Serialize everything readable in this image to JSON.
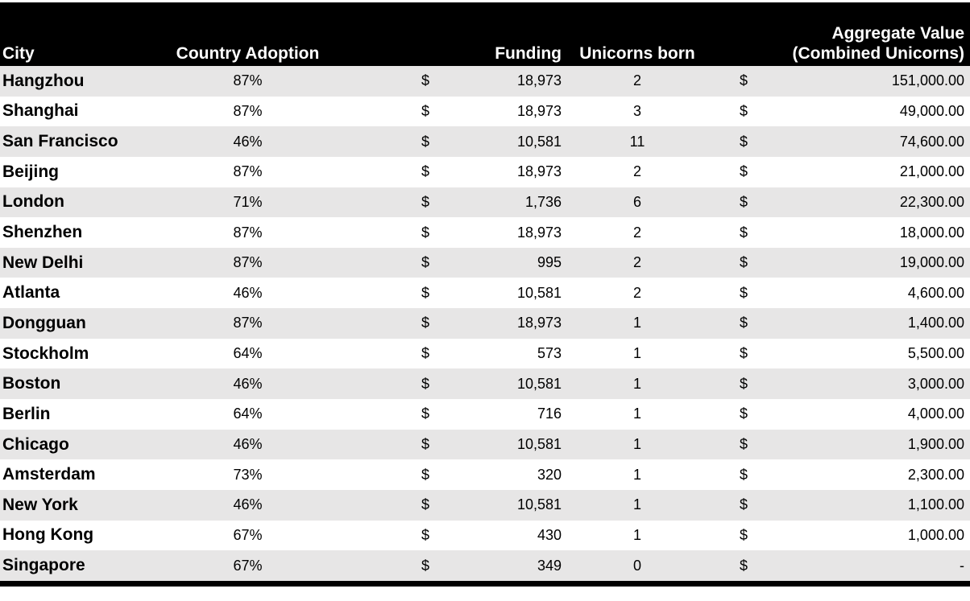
{
  "colors": {
    "header_bg": "#000000",
    "header_text": "#ffffff",
    "row_band_bg": "#e7e6e6",
    "row_plain_bg": "#ffffff",
    "body_text": "#000000",
    "bottom_rule": "#000000"
  },
  "table": {
    "headers": {
      "city": "City",
      "adoption": "Country Adoption",
      "funding": "Funding",
      "unicorns": "Unicorns born",
      "aggregate_line1": "Aggregate Value",
      "aggregate_line2": "(Combined Unicorns)"
    },
    "rows": [
      {
        "city": "Hangzhou",
        "adoption": "87%",
        "funding_currency": "$",
        "funding": "18,973",
        "unicorns": "2",
        "aggregate_currency": "$",
        "aggregate": "151,000.00"
      },
      {
        "city": "Shanghai",
        "adoption": "87%",
        "funding_currency": "$",
        "funding": "18,973",
        "unicorns": "3",
        "aggregate_currency": "$",
        "aggregate": "49,000.00"
      },
      {
        "city": "San Francisco",
        "adoption": "46%",
        "funding_currency": "$",
        "funding": "10,581",
        "unicorns": "11",
        "aggregate_currency": "$",
        "aggregate": "74,600.00"
      },
      {
        "city": "Beijing",
        "adoption": "87%",
        "funding_currency": "$",
        "funding": "18,973",
        "unicorns": "2",
        "aggregate_currency": "$",
        "aggregate": "21,000.00"
      },
      {
        "city": "London",
        "adoption": "71%",
        "funding_currency": "$",
        "funding": "1,736",
        "unicorns": "6",
        "aggregate_currency": "$",
        "aggregate": "22,300.00"
      },
      {
        "city": "Shenzhen",
        "adoption": "87%",
        "funding_currency": "$",
        "funding": "18,973",
        "unicorns": "2",
        "aggregate_currency": "$",
        "aggregate": "18,000.00"
      },
      {
        "city": "New Delhi",
        "adoption": "87%",
        "funding_currency": "$",
        "funding": "995",
        "unicorns": "2",
        "aggregate_currency": "$",
        "aggregate": "19,000.00"
      },
      {
        "city": "Atlanta",
        "adoption": "46%",
        "funding_currency": "$",
        "funding": "10,581",
        "unicorns": "2",
        "aggregate_currency": "$",
        "aggregate": "4,600.00"
      },
      {
        "city": "Dongguan",
        "adoption": "87%",
        "funding_currency": "$",
        "funding": "18,973",
        "unicorns": "1",
        "aggregate_currency": "$",
        "aggregate": "1,400.00"
      },
      {
        "city": "Stockholm",
        "adoption": "64%",
        "funding_currency": "$",
        "funding": "573",
        "unicorns": "1",
        "aggregate_currency": "$",
        "aggregate": "5,500.00"
      },
      {
        "city": "Boston",
        "adoption": "46%",
        "funding_currency": "$",
        "funding": "10,581",
        "unicorns": "1",
        "aggregate_currency": "$",
        "aggregate": "3,000.00"
      },
      {
        "city": "Berlin",
        "adoption": "64%",
        "funding_currency": "$",
        "funding": "716",
        "unicorns": "1",
        "aggregate_currency": "$",
        "aggregate": "4,000.00"
      },
      {
        "city": "Chicago",
        "adoption": "46%",
        "funding_currency": "$",
        "funding": "10,581",
        "unicorns": "1",
        "aggregate_currency": "$",
        "aggregate": "1,900.00"
      },
      {
        "city": "Amsterdam",
        "adoption": "73%",
        "funding_currency": "$",
        "funding": "320",
        "unicorns": "1",
        "aggregate_currency": "$",
        "aggregate": "2,300.00"
      },
      {
        "city": "New York",
        "adoption": "46%",
        "funding_currency": "$",
        "funding": "10,581",
        "unicorns": "1",
        "aggregate_currency": "$",
        "aggregate": "1,100.00"
      },
      {
        "city": "Hong Kong",
        "adoption": "67%",
        "funding_currency": "$",
        "funding": "430",
        "unicorns": "1",
        "aggregate_currency": "$",
        "aggregate": "1,000.00"
      },
      {
        "city": "Singapore",
        "adoption": "67%",
        "funding_currency": "$",
        "funding": "349",
        "unicorns": "0",
        "aggregate_currency": "$",
        "aggregate": "-"
      }
    ]
  },
  "chart_data": {
    "type": "table",
    "columns": [
      "City",
      "Country Adoption",
      "Funding",
      "Unicorns born",
      "Aggregate Value (Combined Unicorns)"
    ],
    "rows": [
      {
        "city": "Hangzhou",
        "country_adoption_pct": 87,
        "funding_usd": 18973,
        "unicorns_born": 2,
        "aggregate_value_usd": 151000.0
      },
      {
        "city": "Shanghai",
        "country_adoption_pct": 87,
        "funding_usd": 18973,
        "unicorns_born": 3,
        "aggregate_value_usd": 49000.0
      },
      {
        "city": "San Francisco",
        "country_adoption_pct": 46,
        "funding_usd": 10581,
        "unicorns_born": 11,
        "aggregate_value_usd": 74600.0
      },
      {
        "city": "Beijing",
        "country_adoption_pct": 87,
        "funding_usd": 18973,
        "unicorns_born": 2,
        "aggregate_value_usd": 21000.0
      },
      {
        "city": "London",
        "country_adoption_pct": 71,
        "funding_usd": 1736,
        "unicorns_born": 6,
        "aggregate_value_usd": 22300.0
      },
      {
        "city": "Shenzhen",
        "country_adoption_pct": 87,
        "funding_usd": 18973,
        "unicorns_born": 2,
        "aggregate_value_usd": 18000.0
      },
      {
        "city": "New Delhi",
        "country_adoption_pct": 87,
        "funding_usd": 995,
        "unicorns_born": 2,
        "aggregate_value_usd": 19000.0
      },
      {
        "city": "Atlanta",
        "country_adoption_pct": 46,
        "funding_usd": 10581,
        "unicorns_born": 2,
        "aggregate_value_usd": 4600.0
      },
      {
        "city": "Dongguan",
        "country_adoption_pct": 87,
        "funding_usd": 18973,
        "unicorns_born": 1,
        "aggregate_value_usd": 1400.0
      },
      {
        "city": "Stockholm",
        "country_adoption_pct": 64,
        "funding_usd": 573,
        "unicorns_born": 1,
        "aggregate_value_usd": 5500.0
      },
      {
        "city": "Boston",
        "country_adoption_pct": 46,
        "funding_usd": 10581,
        "unicorns_born": 1,
        "aggregate_value_usd": 3000.0
      },
      {
        "city": "Berlin",
        "country_adoption_pct": 64,
        "funding_usd": 716,
        "unicorns_born": 1,
        "aggregate_value_usd": 4000.0
      },
      {
        "city": "Chicago",
        "country_adoption_pct": 46,
        "funding_usd": 10581,
        "unicorns_born": 1,
        "aggregate_value_usd": 1900.0
      },
      {
        "city": "Amsterdam",
        "country_adoption_pct": 73,
        "funding_usd": 320,
        "unicorns_born": 1,
        "aggregate_value_usd": 2300.0
      },
      {
        "city": "New York",
        "country_adoption_pct": 46,
        "funding_usd": 10581,
        "unicorns_born": 1,
        "aggregate_value_usd": 1100.0
      },
      {
        "city": "Hong Kong",
        "country_adoption_pct": 67,
        "funding_usd": 430,
        "unicorns_born": 1,
        "aggregate_value_usd": 1000.0
      },
      {
        "city": "Singapore",
        "country_adoption_pct": 67,
        "funding_usd": 349,
        "unicorns_born": 0,
        "aggregate_value_usd": null
      }
    ]
  }
}
